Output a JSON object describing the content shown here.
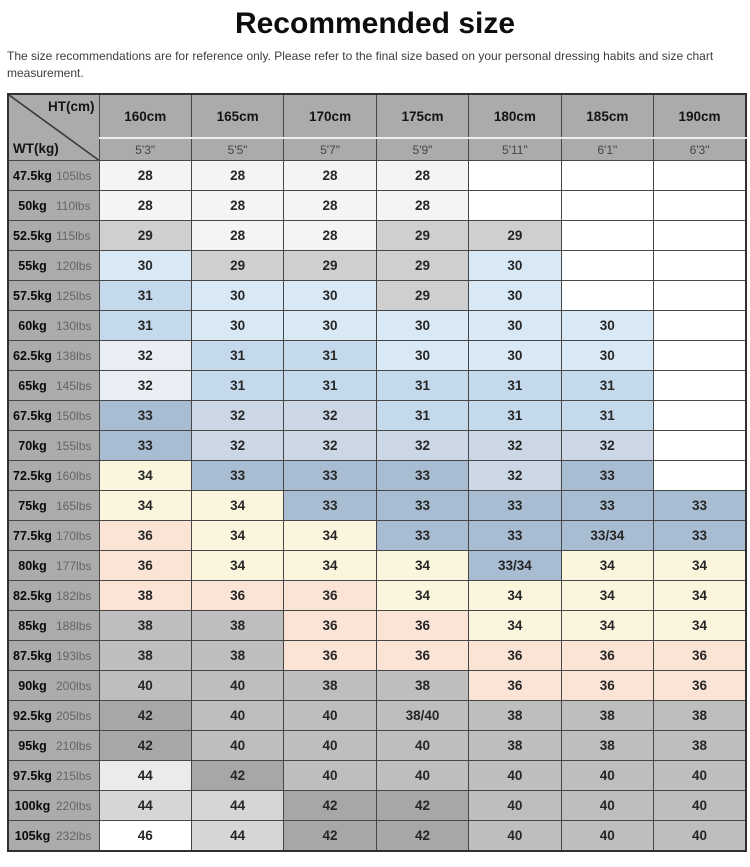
{
  "page": {
    "title": "Recommended size",
    "disclaimer": "The size recommendations are for reference only. Please refer to the final size based on your personal dressing habits and size chart measurement."
  },
  "chart_data": {
    "type": "table",
    "title": "Recommended size",
    "corner": {
      "top": "HT(cm)",
      "bottom": "WT(kg)"
    },
    "columns": [
      {
        "cm": "160cm",
        "ft": "5'3\""
      },
      {
        "cm": "165cm",
        "ft": "5'5\""
      },
      {
        "cm": "170cm",
        "ft": "5'7\""
      },
      {
        "cm": "175cm",
        "ft": "5'9\""
      },
      {
        "cm": "180cm",
        "ft": "5'11\""
      },
      {
        "cm": "185cm",
        "ft": "6'1\""
      },
      {
        "cm": "190cm",
        "ft": "6'3\""
      }
    ],
    "colors": {
      "w": "#ffffff",
      "nw": "#f4f4f4",
      "lg": "#cfcfcf",
      "lg2": "#d6d6d6",
      "llg": "#ebebeb",
      "g": "#bebebe",
      "dg": "#a7a7a7",
      "lb": "#d9e8f5",
      "mb": "#c4d9ec",
      "nb": "#e9eef4",
      "gbl": "#ccd7e5",
      "gb": "#a8bdd2",
      "cr": "#fbf5de",
      "pk": "#fbe4d6"
    },
    "rows": [
      {
        "kg": "47.5kg",
        "lbs": "105lbs",
        "cells": [
          [
            "28",
            "nw"
          ],
          [
            "28",
            "nw"
          ],
          [
            "28",
            "nw"
          ],
          [
            "28",
            "nw"
          ],
          [
            "",
            "w"
          ],
          [
            "",
            "w"
          ],
          [
            "",
            "w"
          ]
        ]
      },
      {
        "kg": "50kg",
        "lbs": "110lbs",
        "cells": [
          [
            "28",
            "nw"
          ],
          [
            "28",
            "nw"
          ],
          [
            "28",
            "nw"
          ],
          [
            "28",
            "nw"
          ],
          [
            "",
            "w"
          ],
          [
            "",
            "w"
          ],
          [
            "",
            "w"
          ]
        ]
      },
      {
        "kg": "52.5kg",
        "lbs": "115lbs",
        "cells": [
          [
            "29",
            "lg"
          ],
          [
            "28",
            "nw"
          ],
          [
            "28",
            "nw"
          ],
          [
            "29",
            "lg"
          ],
          [
            "29",
            "lg"
          ],
          [
            "",
            "w"
          ],
          [
            "",
            "w"
          ]
        ]
      },
      {
        "kg": "55kg",
        "lbs": "120lbs",
        "cells": [
          [
            "30",
            "lb"
          ],
          [
            "29",
            "lg"
          ],
          [
            "29",
            "lg"
          ],
          [
            "29",
            "lg"
          ],
          [
            "30",
            "lb"
          ],
          [
            "",
            "w"
          ],
          [
            "",
            "w"
          ]
        ]
      },
      {
        "kg": "57.5kg",
        "lbs": "125lbs",
        "cells": [
          [
            "31",
            "mb"
          ],
          [
            "30",
            "lb"
          ],
          [
            "30",
            "lb"
          ],
          [
            "29",
            "lg"
          ],
          [
            "30",
            "lb"
          ],
          [
            "",
            "w"
          ],
          [
            "",
            "w"
          ]
        ]
      },
      {
        "kg": "60kg",
        "lbs": "130lbs",
        "cells": [
          [
            "31",
            "mb"
          ],
          [
            "30",
            "lb"
          ],
          [
            "30",
            "lb"
          ],
          [
            "30",
            "lb"
          ],
          [
            "30",
            "lb"
          ],
          [
            "30",
            "lb"
          ],
          [
            "",
            "w"
          ]
        ]
      },
      {
        "kg": "62.5kg",
        "lbs": "138lbs",
        "cells": [
          [
            "32",
            "nb"
          ],
          [
            "31",
            "mb"
          ],
          [
            "31",
            "mb"
          ],
          [
            "30",
            "lb"
          ],
          [
            "30",
            "lb"
          ],
          [
            "30",
            "lb"
          ],
          [
            "",
            "w"
          ]
        ]
      },
      {
        "kg": "65kg",
        "lbs": "145lbs",
        "cells": [
          [
            "32",
            "nb"
          ],
          [
            "31",
            "mb"
          ],
          [
            "31",
            "mb"
          ],
          [
            "31",
            "mb"
          ],
          [
            "31",
            "mb"
          ],
          [
            "31",
            "mb"
          ],
          [
            "",
            "w"
          ]
        ]
      },
      {
        "kg": "67.5kg",
        "lbs": "150lbs",
        "cells": [
          [
            "33",
            "gb"
          ],
          [
            "32",
            "gbl"
          ],
          [
            "32",
            "gbl"
          ],
          [
            "31",
            "mb"
          ],
          [
            "31",
            "mb"
          ],
          [
            "31",
            "mb"
          ],
          [
            "",
            "w"
          ]
        ]
      },
      {
        "kg": "70kg",
        "lbs": "155lbs",
        "cells": [
          [
            "33",
            "gb"
          ],
          [
            "32",
            "gbl"
          ],
          [
            "32",
            "gbl"
          ],
          [
            "32",
            "gbl"
          ],
          [
            "32",
            "gbl"
          ],
          [
            "32",
            "gbl"
          ],
          [
            "",
            "w"
          ]
        ]
      },
      {
        "kg": "72.5kg",
        "lbs": "160lbs",
        "cells": [
          [
            "34",
            "cr"
          ],
          [
            "33",
            "gb"
          ],
          [
            "33",
            "gb"
          ],
          [
            "33",
            "gb"
          ],
          [
            "32",
            "gbl"
          ],
          [
            "33",
            "gb"
          ],
          [
            "",
            "w"
          ]
        ]
      },
      {
        "kg": "75kg",
        "lbs": "165lbs",
        "cells": [
          [
            "34",
            "cr"
          ],
          [
            "34",
            "cr"
          ],
          [
            "33",
            "gb"
          ],
          [
            "33",
            "gb"
          ],
          [
            "33",
            "gb"
          ],
          [
            "33",
            "gb"
          ],
          [
            "33",
            "gb"
          ]
        ]
      },
      {
        "kg": "77.5kg",
        "lbs": "170lbs",
        "cells": [
          [
            "36",
            "pk"
          ],
          [
            "34",
            "cr"
          ],
          [
            "34",
            "cr"
          ],
          [
            "33",
            "gb"
          ],
          [
            "33",
            "gb"
          ],
          [
            "33/34",
            "gb"
          ],
          [
            "33",
            "gb"
          ]
        ]
      },
      {
        "kg": "80kg",
        "lbs": "177lbs",
        "cells": [
          [
            "36",
            "pk"
          ],
          [
            "34",
            "cr"
          ],
          [
            "34",
            "cr"
          ],
          [
            "34",
            "cr"
          ],
          [
            "33/34",
            "gb"
          ],
          [
            "34",
            "cr"
          ],
          [
            "34",
            "cr"
          ]
        ]
      },
      {
        "kg": "82.5kg",
        "lbs": "182lbs",
        "cells": [
          [
            "38",
            "pk"
          ],
          [
            "36",
            "pk"
          ],
          [
            "36",
            "pk"
          ],
          [
            "34",
            "cr"
          ],
          [
            "34",
            "cr"
          ],
          [
            "34",
            "cr"
          ],
          [
            "34",
            "cr"
          ]
        ]
      },
      {
        "kg": "85kg",
        "lbs": "188lbs",
        "cells": [
          [
            "38",
            "g"
          ],
          [
            "38",
            "g"
          ],
          [
            "36",
            "pk"
          ],
          [
            "36",
            "pk"
          ],
          [
            "34",
            "cr"
          ],
          [
            "34",
            "cr"
          ],
          [
            "34",
            "cr"
          ]
        ]
      },
      {
        "kg": "87.5kg",
        "lbs": "193lbs",
        "cells": [
          [
            "38",
            "g"
          ],
          [
            "38",
            "g"
          ],
          [
            "36",
            "pk"
          ],
          [
            "36",
            "pk"
          ],
          [
            "36",
            "pk"
          ],
          [
            "36",
            "pk"
          ],
          [
            "36",
            "pk"
          ]
        ]
      },
      {
        "kg": "90kg",
        "lbs": "200lbs",
        "cells": [
          [
            "40",
            "g"
          ],
          [
            "40",
            "g"
          ],
          [
            "38",
            "g"
          ],
          [
            "38",
            "g"
          ],
          [
            "36",
            "pk"
          ],
          [
            "36",
            "pk"
          ],
          [
            "36",
            "pk"
          ]
        ]
      },
      {
        "kg": "92.5kg",
        "lbs": "205lbs",
        "cells": [
          [
            "42",
            "dg"
          ],
          [
            "40",
            "g"
          ],
          [
            "40",
            "g"
          ],
          [
            "38/40",
            "g"
          ],
          [
            "38",
            "g"
          ],
          [
            "38",
            "g"
          ],
          [
            "38",
            "g"
          ]
        ]
      },
      {
        "kg": "95kg",
        "lbs": "210lbs",
        "cells": [
          [
            "42",
            "dg"
          ],
          [
            "40",
            "g"
          ],
          [
            "40",
            "g"
          ],
          [
            "40",
            "g"
          ],
          [
            "38",
            "g"
          ],
          [
            "38",
            "g"
          ],
          [
            "38",
            "g"
          ]
        ]
      },
      {
        "kg": "97.5kg",
        "lbs": "215lbs",
        "cells": [
          [
            "44",
            "llg"
          ],
          [
            "42",
            "dg"
          ],
          [
            "40",
            "g"
          ],
          [
            "40",
            "g"
          ],
          [
            "40",
            "g"
          ],
          [
            "40",
            "g"
          ],
          [
            "40",
            "g"
          ]
        ]
      },
      {
        "kg": "100kg",
        "lbs": "220lbs",
        "cells": [
          [
            "44",
            "lg2"
          ],
          [
            "44",
            "lg2"
          ],
          [
            "42",
            "dg"
          ],
          [
            "42",
            "dg"
          ],
          [
            "40",
            "g"
          ],
          [
            "40",
            "g"
          ],
          [
            "40",
            "g"
          ]
        ]
      },
      {
        "kg": "105kg",
        "lbs": "232lbs",
        "cells": [
          [
            "46",
            "w"
          ],
          [
            "44",
            "lg2"
          ],
          [
            "42",
            "dg"
          ],
          [
            "42",
            "dg"
          ],
          [
            "40",
            "g"
          ],
          [
            "40",
            "g"
          ],
          [
            "40",
            "g"
          ]
        ]
      }
    ]
  }
}
